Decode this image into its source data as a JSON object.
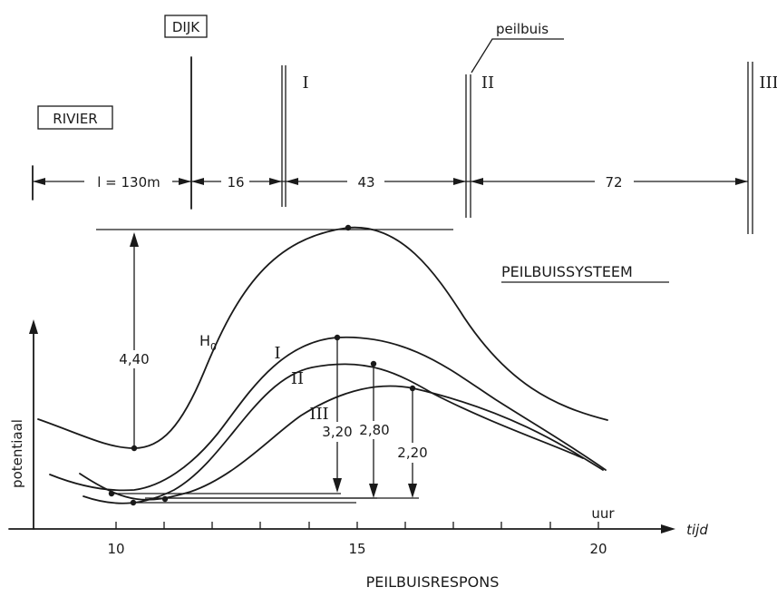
{
  "schematic": {
    "dike_label": "DIJK",
    "river_label": "RIVIER",
    "tube_label": "peilbuis",
    "tube_names": [
      "I",
      "II",
      "III"
    ],
    "distances": {
      "river_to_dike": "l = 130m",
      "dike_to_I": "16",
      "I_to_II": "43",
      "II_to_III": "72"
    },
    "system_title": "PEILBUISSYSTEEM"
  },
  "graph": {
    "y_axis_label": "potentiaal",
    "x_axis_unit": "uur",
    "x_axis_label": "tijd",
    "x_ticks": [
      "10",
      "15",
      "20"
    ],
    "curve_labels": {
      "H0": "H",
      "H0_sub": "0",
      "I": "I",
      "II": "II",
      "III": "III"
    },
    "amplitudes": {
      "H0": "4,40",
      "I": "3,20",
      "II": "2,80",
      "III": "2,20"
    },
    "caption": "PEILBUISRESPONS"
  }
}
